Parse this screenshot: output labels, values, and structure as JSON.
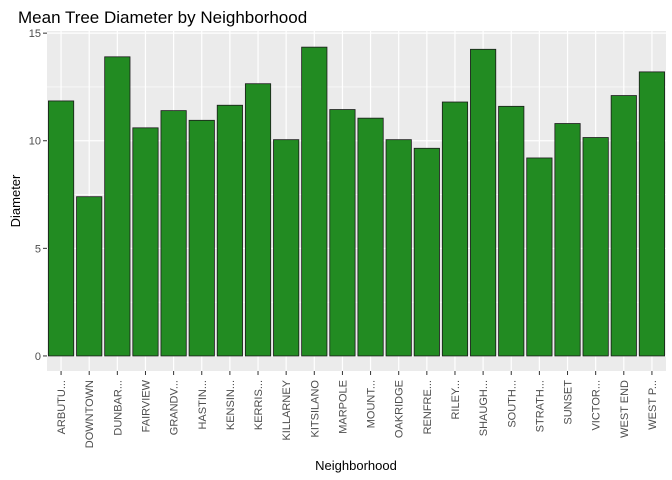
{
  "chart_data": {
    "type": "bar",
    "title": "Mean Tree Diameter by Neighborhood",
    "xlabel": "Neighborhood",
    "ylabel": "Diameter",
    "categories": [
      "ARBUTU...",
      "DOWNTOWN",
      "DUNBAR...",
      "FAIRVIEW",
      "GRANDV...",
      "HASTIN...",
      "KENSIN...",
      "KERRIS...",
      "KILLARNEY",
      "KITSILANO",
      "MARPOLE",
      "MOUNT...",
      "OAKRIDGE",
      "RENFRE...",
      "RILEY...",
      "SHAUGH...",
      "SOUTH...",
      "STRATH...",
      "SUNSET",
      "VICTOR...",
      "WEST END",
      "WEST P..."
    ],
    "values": [
      11.85,
      7.4,
      13.9,
      10.6,
      11.4,
      10.95,
      11.65,
      12.65,
      10.05,
      14.35,
      11.45,
      11.05,
      10.05,
      9.65,
      11.8,
      14.25,
      11.6,
      9.2,
      10.8,
      10.15,
      12.1,
      13.2
    ],
    "yticks": [
      0,
      5,
      10,
      15
    ],
    "ylim": [
      -0.7,
      15.1
    ],
    "grid": true,
    "bar_fill": "#228b22",
    "bar_stroke": "#1a1a1a",
    "panel_background": "#ebebeb",
    "grid_color": "#ffffff"
  }
}
